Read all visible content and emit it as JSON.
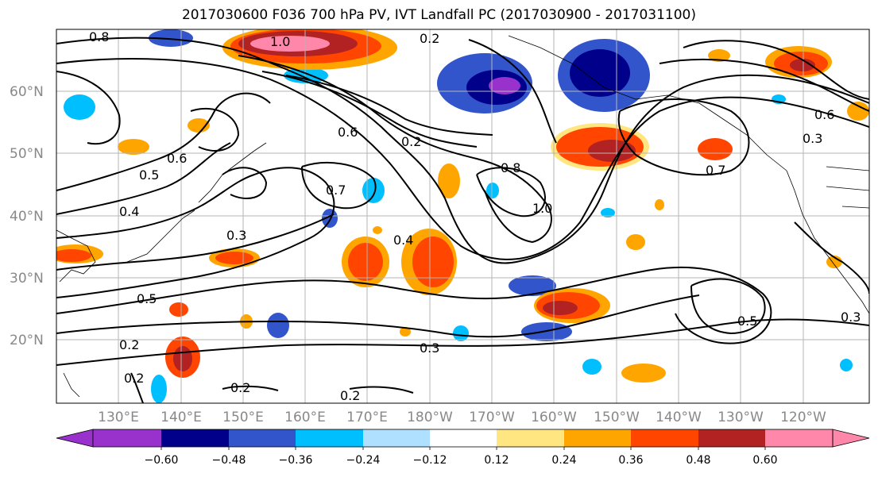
{
  "title": "2017030600 F036 700 hPa PV, IVT Landfall PC (2017030900 - 2017031100)",
  "map": {
    "lat_labels": [
      "60°N",
      "50°N",
      "40°N",
      "30°N",
      "20°N"
    ],
    "lon_labels": [
      "130°E",
      "140°E",
      "150°E",
      "160°E",
      "170°E",
      "180°W",
      "170°W",
      "160°W",
      "150°W",
      "140°W",
      "130°W",
      "120°W"
    ],
    "grid": true
  },
  "colorbar": {
    "colors": [
      "#9932cc",
      "#00008b",
      "#3355cc",
      "#00bfff",
      "#b0e0ff",
      "#ffffff",
      "#ffe680",
      "#ffa500",
      "#ff4500",
      "#b22222",
      "#ff88aa"
    ],
    "tick_labels": [
      "−0.60",
      "−0.48",
      "−0.36",
      "−0.24",
      "−0.12",
      "0.12",
      "0.24",
      "0.36",
      "0.48",
      "0.60"
    ]
  },
  "contour_labels": {
    "l1": "0.8",
    "l2": "1.0",
    "l3": "0.2",
    "l4": "0.6",
    "l5": "0.5",
    "l6": "0.4",
    "l7": "0.7",
    "l8": "0.3",
    "l9": "0.5",
    "l10": "0.2",
    "l11": "0.3",
    "l12": "0.2",
    "l13": "0.2",
    "l14": "0.2",
    "l15": "0.6",
    "l16": "0.2",
    "l17": "0.8",
    "l18": "1.0",
    "l19": "0.7",
    "l20": "0.5",
    "l21": "0.3",
    "l22": "0.6",
    "l23": "0.3",
    "l24": "0.4"
  }
}
